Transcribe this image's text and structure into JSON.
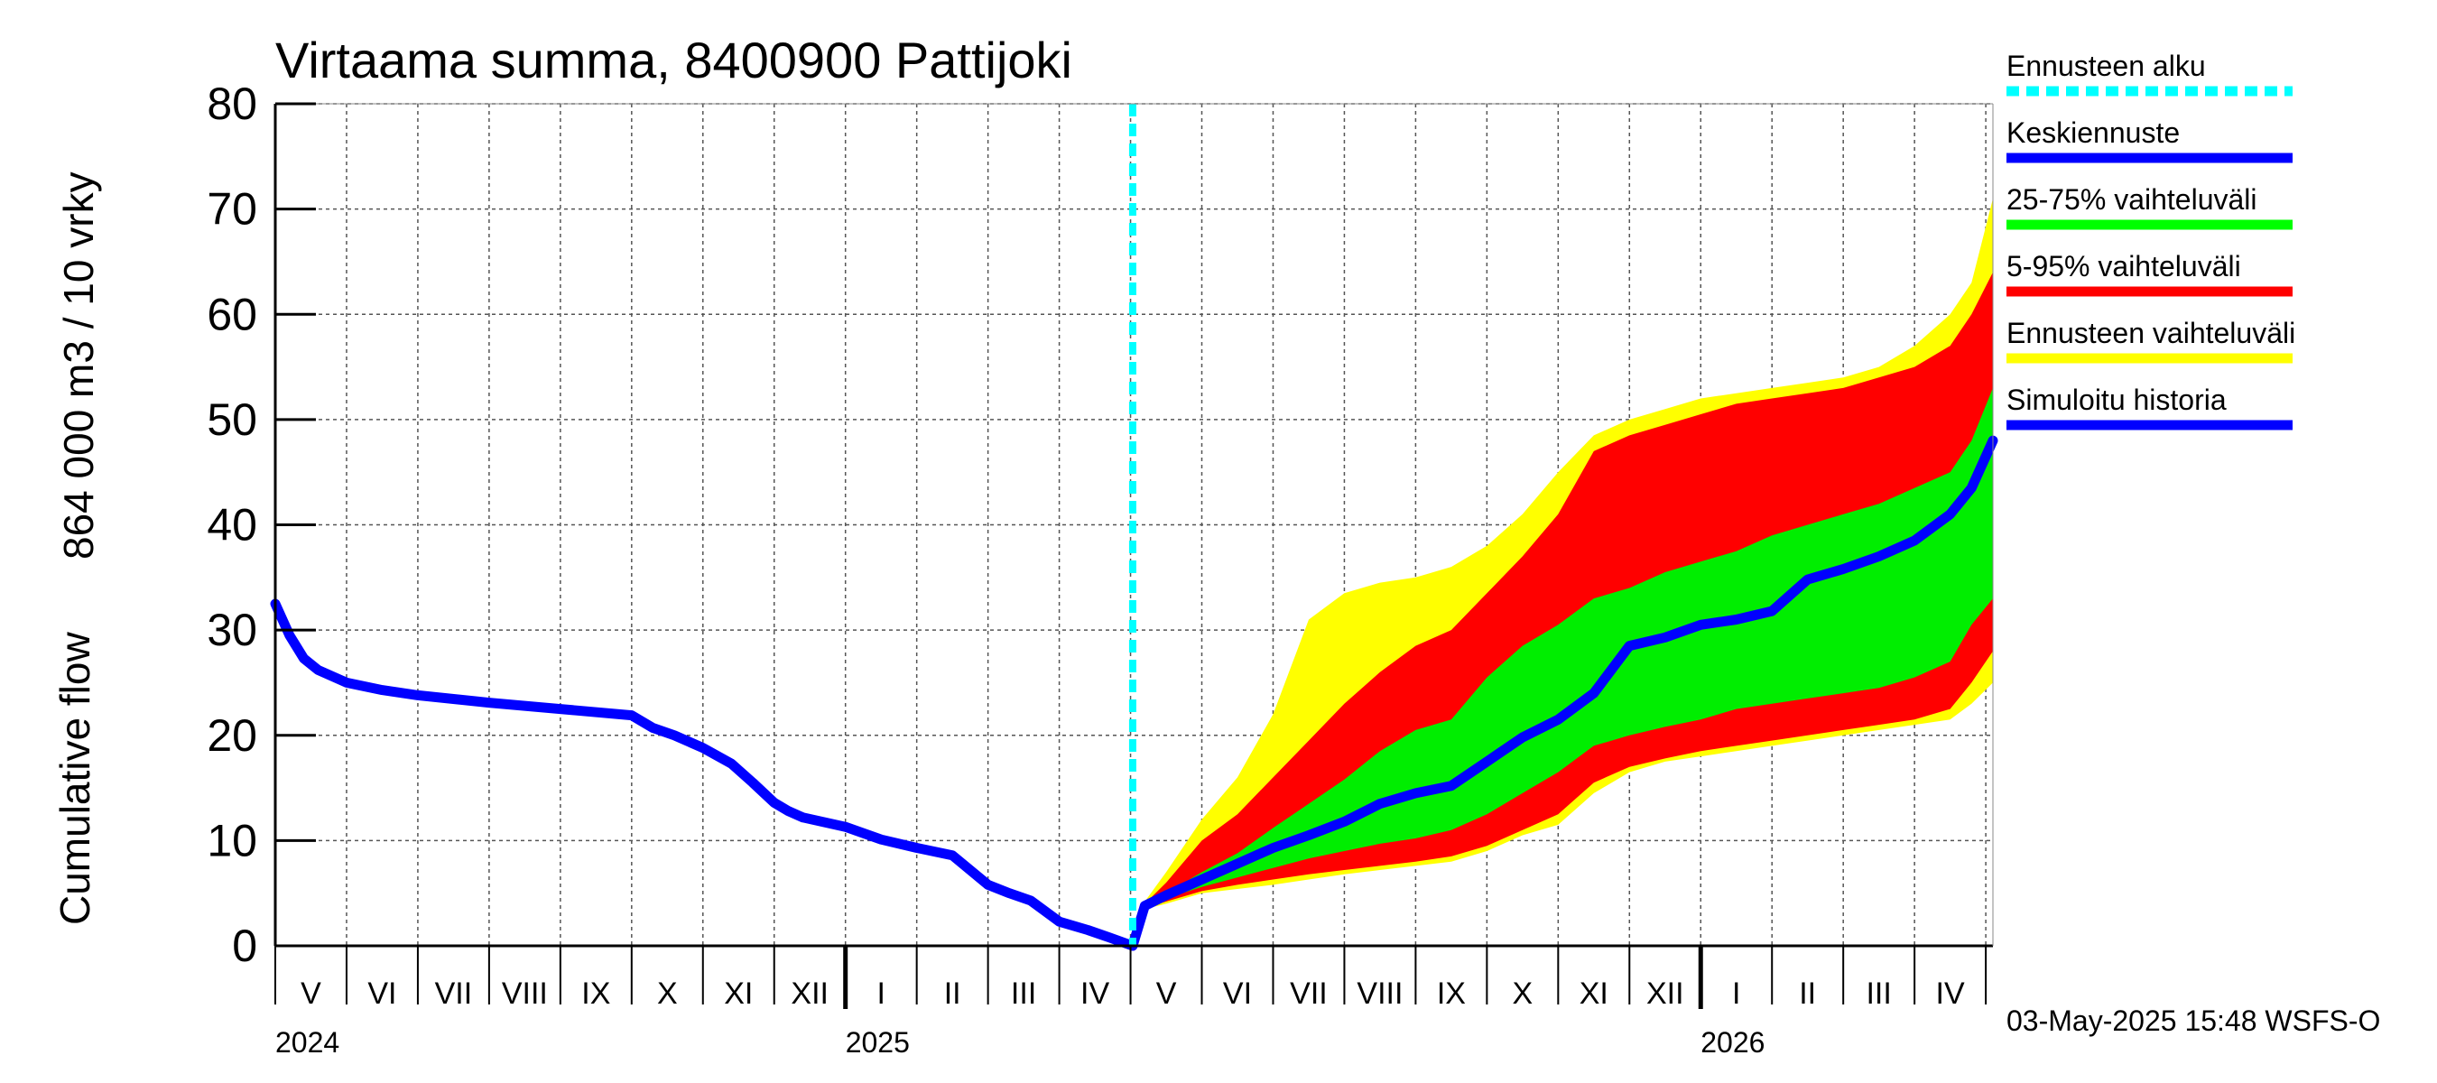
{
  "title": "Virtaama summa, 8400900 Pattijoki",
  "ylabel_top": "864 000 m3 / 10 vrky",
  "ylabel_bottom": "Cumulative flow",
  "footer": "03-May-2025 15:48 WSFS-O",
  "legend": [
    {
      "label": "Ennusteen alku",
      "color": "#00ffff",
      "dashed": true
    },
    {
      "label": "Keskiennuste",
      "color": "#0000ff",
      "dashed": false
    },
    {
      "label": "25-75% vaihteluväli",
      "color": "#00ff00",
      "dashed": false
    },
    {
      "label": "5-95% vaihteluväli",
      "color": "#ff0000",
      "dashed": false
    },
    {
      "label": "Ennusteen vaihteluväli",
      "color": "#ffff00",
      "dashed": false
    },
    {
      "label": "Simuloitu historia",
      "color": "#0000ff",
      "dashed": false
    }
  ],
  "chart_data": {
    "type": "area",
    "title": "Virtaama summa, 8400900 Pattijoki",
    "ylabel": "Cumulative flow 864 000 m3 / 10 vrky",
    "ylim": [
      0,
      80
    ],
    "yticks": [
      0,
      10,
      20,
      30,
      40,
      50,
      60,
      70,
      80
    ],
    "grid": true,
    "legend_position": "right",
    "x_unit": "months since 2024-04-01",
    "xlim": [
      0,
      24.1
    ],
    "month_labels": [
      "V",
      "VI",
      "VII",
      "VIII",
      "IX",
      "X",
      "XI",
      "XII",
      "I",
      "II",
      "III",
      "IV",
      "V",
      "VI",
      "VII",
      "VIII",
      "IX",
      "X",
      "XI",
      "XII",
      "I",
      "II",
      "III",
      "IV"
    ],
    "year_labels": [
      {
        "label": "2024",
        "month": 0
      },
      {
        "label": "2025",
        "month": 8
      },
      {
        "label": "2026",
        "month": 20
      }
    ],
    "year_boundaries": [
      8,
      20
    ],
    "forecast_start": 12.03,
    "history": {
      "name": "Simuloitu historia",
      "x": [
        0,
        0.2,
        0.4,
        0.6,
        0.8,
        1,
        1.5,
        2,
        3,
        4,
        5,
        5.3,
        5.6,
        6,
        6.4,
        6.7,
        7,
        7.2,
        7.4,
        8,
        8.5,
        9,
        9.5,
        10,
        10.3,
        10.6,
        11,
        11.4,
        11.7,
        12.03
      ],
      "values": [
        32.5,
        29.5,
        27.3,
        26.2,
        25.6,
        25,
        24.3,
        23.8,
        23.1,
        22.5,
        21.9,
        20.7,
        20,
        18.8,
        17.3,
        15.5,
        13.6,
        12.8,
        12.2,
        11.3,
        10.1,
        9.3,
        8.6,
        5.8,
        5,
        4.3,
        2.3,
        1.5,
        0.8,
        0
      ]
    },
    "median": {
      "name": "Keskiennuste",
      "x": [
        12.03,
        12.2,
        12.5,
        13,
        13.5,
        14,
        14.5,
        15,
        15.5,
        16,
        16.5,
        17,
        17.5,
        18,
        18.5,
        19,
        19.5,
        20,
        20.5,
        21,
        21.5,
        22,
        22.5,
        23,
        23.5,
        23.8,
        24.1
      ],
      "values": [
        0,
        3.8,
        4.8,
        6.3,
        7.8,
        9.3,
        10.5,
        11.8,
        13.5,
        14.5,
        15.2,
        17.5,
        19.8,
        21.5,
        24,
        28.5,
        29.3,
        30.5,
        31,
        31.8,
        34.8,
        35.8,
        37,
        38.5,
        41,
        43.5,
        48
      ]
    },
    "band_25_75": {
      "name": "25-75% vaihteluväli",
      "x": [
        12.03,
        12.2,
        12.5,
        13,
        13.5,
        14,
        14.5,
        15,
        15.5,
        16,
        16.5,
        17,
        17.5,
        18,
        18.5,
        19,
        19.5,
        20,
        20.5,
        21,
        21.5,
        22,
        22.5,
        23,
        23.5,
        23.8,
        24.1
      ],
      "upper": [
        0,
        3.9,
        5,
        7,
        8.8,
        11.2,
        13.5,
        15.8,
        18.5,
        20.5,
        21.5,
        25.5,
        28.5,
        30.5,
        33,
        34,
        35.5,
        36.5,
        37.5,
        39,
        40,
        41,
        42,
        43.5,
        45,
        48,
        53
      ],
      "lower": [
        0,
        3.7,
        4.5,
        5.6,
        6.5,
        7.4,
        8.3,
        9,
        9.7,
        10.2,
        11,
        12.5,
        14.5,
        16.5,
        19,
        20,
        20.8,
        21.5,
        22.5,
        23,
        23.5,
        24,
        24.5,
        25.5,
        27,
        30.5,
        33
      ]
    },
    "band_5_95": {
      "name": "5-95% vaihteluväli",
      "x": [
        12.03,
        12.2,
        12.5,
        13,
        13.5,
        14,
        14.5,
        15,
        15.5,
        16,
        16.5,
        17,
        17.5,
        18,
        18.5,
        19,
        19.5,
        20,
        20.5,
        21,
        21.5,
        22,
        22.5,
        23,
        23.5,
        23.8,
        24.1
      ],
      "upper": [
        0,
        4,
        6,
        10,
        12.5,
        16,
        19.5,
        23,
        26,
        28.5,
        30,
        33.5,
        37,
        41,
        47,
        48.5,
        49.5,
        50.5,
        51.5,
        52,
        52.5,
        53,
        54,
        55,
        57,
        60,
        64
      ],
      "lower": [
        0,
        3.6,
        4.2,
        5.2,
        5.8,
        6.3,
        6.8,
        7.2,
        7.6,
        8,
        8.5,
        9.5,
        11,
        12.5,
        15.5,
        17,
        17.8,
        18.5,
        19,
        19.5,
        20,
        20.5,
        21,
        21.5,
        22.5,
        25,
        28
      ]
    },
    "band_range": {
      "name": "Ennusteen vaihteluväli",
      "x": [
        12.03,
        12.2,
        12.5,
        13,
        13.5,
        14,
        14.5,
        15,
        15.5,
        16,
        16.5,
        17,
        17.5,
        18,
        18.5,
        19,
        19.5,
        20,
        20.5,
        21,
        21.5,
        22,
        22.5,
        23,
        23.5,
        23.8,
        24.1
      ],
      "upper": [
        0,
        4.2,
        7,
        12,
        16,
        22,
        31,
        33.5,
        34.5,
        35,
        36,
        38,
        41,
        45,
        48.5,
        50,
        51,
        52,
        52.5,
        53,
        53.5,
        54,
        55,
        57,
        60,
        63,
        71
      ],
      "lower": [
        0,
        3.5,
        4,
        5,
        5.4,
        5.8,
        6.3,
        6.8,
        7.2,
        7.6,
        8,
        9,
        10.5,
        11.5,
        14.5,
        16.5,
        17.5,
        18,
        18.5,
        19,
        19.5,
        20,
        20.5,
        21,
        21.5,
        23,
        25
      ]
    }
  }
}
